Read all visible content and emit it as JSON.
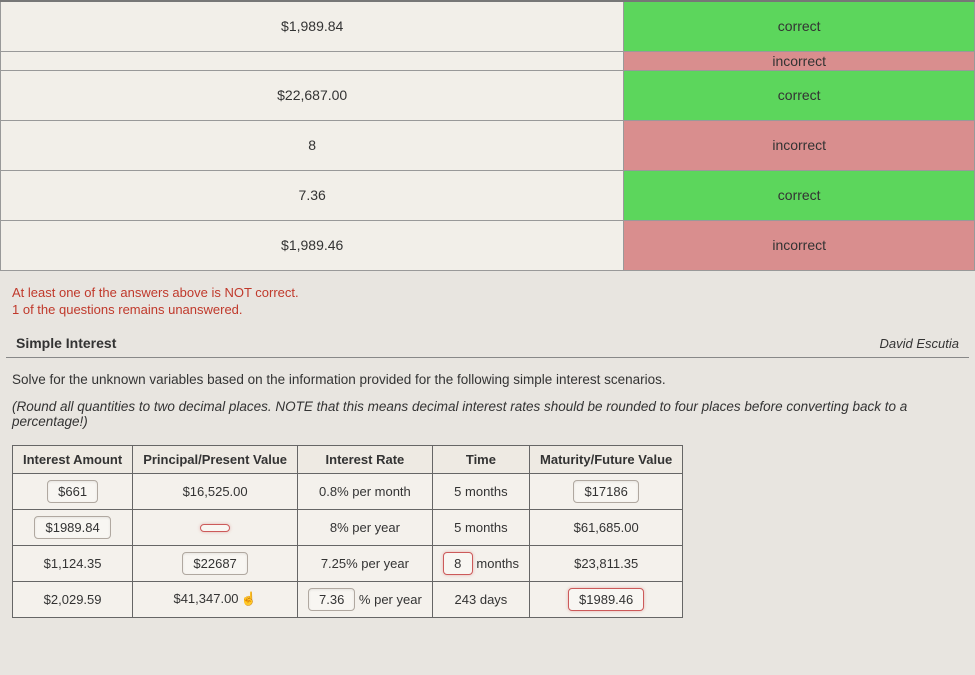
{
  "grading": {
    "rows": [
      {
        "answer": "$1,989.84",
        "status": "correct",
        "statusClass": "status-correct",
        "short": false
      },
      {
        "answer": "",
        "status": "incorrect",
        "statusClass": "status-incorrect",
        "short": true
      },
      {
        "answer": "$22,687.00",
        "status": "correct",
        "statusClass": "status-correct",
        "short": false
      },
      {
        "answer": "8",
        "status": "incorrect",
        "statusClass": "status-incorrect",
        "short": false
      },
      {
        "answer": "7.36",
        "status": "correct",
        "statusClass": "status-correct",
        "short": false
      },
      {
        "answer": "$1,989.46",
        "status": "incorrect",
        "statusClass": "status-incorrect",
        "short": false
      }
    ]
  },
  "warnings": {
    "line1": "At least one of the answers above is NOT correct.",
    "line2": "1 of the questions remains unanswered."
  },
  "header": {
    "title": "Simple Interest",
    "author": "David Escutia"
  },
  "prompt": "Solve for the unknown variables based on the information provided for the following simple interest scenarios.",
  "note": "(Round all quantities to two decimal places. NOTE that this means decimal interest rates should be rounded to four places before converting back to a percentage!)",
  "table": {
    "columns": [
      "Interest Amount",
      "Principal/Present Value",
      "Interest Rate",
      "Time",
      "Maturity/Future Value"
    ],
    "rows": [
      {
        "interest": {
          "value": "$661",
          "input": true,
          "err": false
        },
        "principal": {
          "value": "$16,525.00",
          "input": false
        },
        "rate": {
          "value": "0.8% per month",
          "input": false
        },
        "time": {
          "value": "5 months",
          "input": false
        },
        "maturity": {
          "value": "$17186",
          "input": true,
          "err": false
        }
      },
      {
        "interest": {
          "value": "$1989.84",
          "input": true,
          "err": false
        },
        "principal": {
          "value": "",
          "input": true,
          "err": true,
          "empty": true
        },
        "rate": {
          "value": "8% per year",
          "input": false
        },
        "time": {
          "value": "5 months",
          "input": false
        },
        "maturity": {
          "value": "$61,685.00",
          "input": false
        }
      },
      {
        "interest": {
          "value": "$1,124.35",
          "input": false
        },
        "principal": {
          "value": "$22687",
          "input": true,
          "err": false
        },
        "rate": {
          "value": "7.25% per year",
          "input": false
        },
        "time": {
          "value": "8",
          "suffix": " months",
          "input": true,
          "err": true
        },
        "maturity": {
          "value": "$23,811.35",
          "input": false
        }
      },
      {
        "interest": {
          "value": "$2,029.59",
          "input": false
        },
        "principal": {
          "value": "$41,347.00",
          "input": false,
          "cursor": true
        },
        "rate": {
          "value": "7.36",
          "suffix": " % per year",
          "input": true,
          "err": false
        },
        "time": {
          "value": "243 days",
          "input": false
        },
        "maturity": {
          "value": "$1989.46",
          "input": true,
          "err": true
        }
      }
    ]
  },
  "colors": {
    "correct_bg": "#5cd65c",
    "incorrect_bg": "#d98e8e",
    "page_bg": "#e8e5e0",
    "warn_text": "#c0392b",
    "border": "#999",
    "input_err_border": "#cc5a5a"
  }
}
